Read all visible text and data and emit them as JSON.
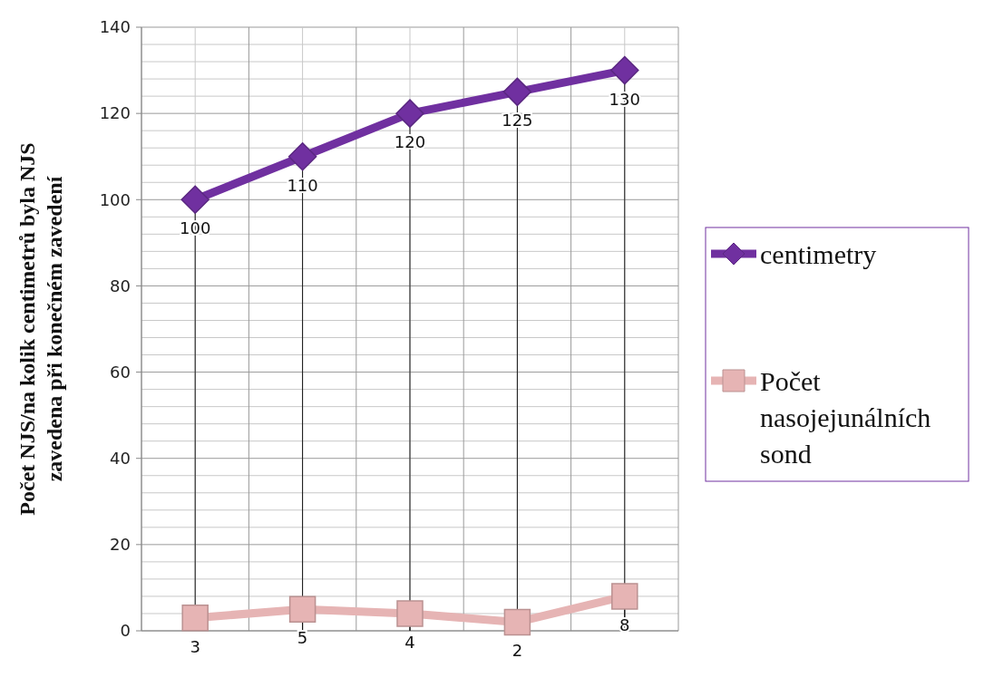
{
  "chart_data": {
    "type": "line",
    "ylabel": "Počet NJS/na kolik centimetrů byla NJS zavedena při konečném zavedení",
    "categories": [
      null,
      null,
      null,
      null,
      null
    ],
    "series": [
      {
        "name": "centimetry",
        "color": "#7030a0",
        "values": [
          100,
          110,
          120,
          125,
          130
        ],
        "marker": "diamond"
      },
      {
        "name": "Počet nasojejunálních sond",
        "color": "#e6b4b4",
        "values": [
          3,
          5,
          4,
          2,
          8
        ],
        "marker": "square"
      }
    ],
    "ylim": [
      0,
      140
    ],
    "yticks": [
      0,
      {
        "value": 4,
        "label": null
      },
      {
        "value": 8,
        "label": null
      },
      {
        "value": 12,
        "label": null
      },
      {
        "value": 16,
        "label": null
      },
      20,
      {
        "value": 24,
        "label": null
      },
      {
        "value": 28,
        "label": null
      },
      {
        "value": 32,
        "label": null
      },
      {
        "value": 36,
        "label": null
      },
      40,
      {
        "value": 44,
        "label": null
      },
      {
        "value": 48,
        "label": null
      },
      {
        "value": 52,
        "label": null
      },
      {
        "value": 56,
        "label": null
      },
      60,
      {
        "value": 64,
        "label": null
      },
      {
        "value": 68,
        "label": null
      },
      {
        "value": 72,
        "label": null
      },
      {
        "value": 76,
        "label": null
      },
      80,
      {
        "value": 84,
        "label": null
      },
      {
        "value": 88,
        "label": null
      },
      {
        "value": 92,
        "label": null
      },
      {
        "value": 96,
        "label": null
      },
      100,
      {
        "value": 104,
        "label": null
      },
      {
        "value": 108,
        "label": null
      },
      {
        "value": 112,
        "label": null
      },
      {
        "value": 116,
        "label": null
      },
      120,
      {
        "value": 124,
        "label": null
      },
      {
        "value": 128,
        "label": null
      },
      {
        "value": 132,
        "label": null
      },
      {
        "value": 136,
        "label": null
      },
      140
    ],
    "grid": true,
    "legend": "right",
    "data_labels": true,
    "line_style": "solid"
  }
}
